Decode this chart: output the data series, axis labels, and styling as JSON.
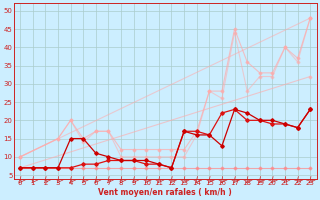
{
  "background_color": "#cceeff",
  "grid_color": "#aacccc",
  "xlim": [
    -0.5,
    23.5
  ],
  "ylim": [
    4,
    52
  ],
  "yticks": [
    5,
    10,
    15,
    20,
    25,
    30,
    35,
    40,
    45,
    50
  ],
  "xticks": [
    0,
    1,
    2,
    3,
    4,
    5,
    6,
    7,
    8,
    9,
    10,
    11,
    12,
    13,
    14,
    15,
    16,
    17,
    18,
    19,
    20,
    21,
    22,
    23
  ],
  "xlabel": "Vent moyen/en rafales ( km/h )",
  "series": [
    {
      "x": [
        0,
        1,
        2,
        3,
        4,
        5,
        6,
        7,
        8,
        9,
        10,
        11,
        12,
        13,
        14,
        15,
        16,
        17,
        18,
        19,
        20,
        21,
        22,
        23
      ],
      "y": [
        7,
        7,
        7,
        7,
        7,
        7,
        7,
        7,
        7,
        7,
        7,
        7,
        7,
        7,
        7,
        7,
        7,
        7,
        7,
        7,
        7,
        7,
        7,
        7
      ],
      "color": "#ff8888",
      "alpha": 0.7,
      "linewidth": 0.8,
      "marker": "D",
      "markersize": 1.5
    },
    {
      "x": [
        0,
        23
      ],
      "y": [
        7,
        32
      ],
      "color": "#ffaaaa",
      "alpha": 0.6,
      "linewidth": 0.8,
      "marker": "D",
      "markersize": 1.5
    },
    {
      "x": [
        0,
        23
      ],
      "y": [
        10,
        48
      ],
      "color": "#ffaaaa",
      "alpha": 0.55,
      "linewidth": 0.8,
      "marker": "D",
      "markersize": 1.5
    },
    {
      "x": [
        0,
        3,
        4,
        5,
        6,
        7,
        8,
        9,
        10,
        11,
        12,
        13,
        14,
        15,
        16,
        17,
        18,
        19,
        20,
        21,
        22,
        23
      ],
      "y": [
        10,
        15,
        20,
        15,
        17,
        17,
        12,
        12,
        12,
        12,
        12,
        12,
        17,
        28,
        28,
        45,
        36,
        33,
        33,
        40,
        37,
        48
      ],
      "color": "#ffaaaa",
      "alpha": 0.7,
      "linewidth": 0.8,
      "marker": "D",
      "markersize": 1.5
    },
    {
      "x": [
        0,
        3,
        4,
        5,
        6,
        7,
        8,
        9,
        10,
        11,
        12,
        13,
        14,
        15,
        16,
        17,
        18,
        19,
        20,
        21,
        22,
        23
      ],
      "y": [
        10,
        15,
        20,
        14,
        17,
        17,
        10,
        10,
        10,
        10,
        10,
        10,
        16,
        28,
        26,
        44,
        28,
        32,
        32,
        40,
        36,
        48
      ],
      "color": "#ffaaaa",
      "alpha": 0.55,
      "linewidth": 0.8,
      "marker": "D",
      "markersize": 1.5
    },
    {
      "x": [
        0,
        1,
        2,
        3,
        4,
        5,
        6,
        7,
        8,
        9,
        10,
        11,
        12,
        13,
        14,
        15,
        16,
        17,
        18,
        19,
        20,
        21,
        22,
        23
      ],
      "y": [
        7,
        7,
        7,
        7,
        7,
        8,
        8,
        9,
        9,
        9,
        8,
        8,
        7,
        17,
        17,
        16,
        22,
        23,
        20,
        20,
        19,
        19,
        18,
        23
      ],
      "color": "#dd1111",
      "alpha": 1.0,
      "linewidth": 0.9,
      "marker": "D",
      "markersize": 1.8
    },
    {
      "x": [
        0,
        1,
        2,
        3,
        4,
        5,
        6,
        7,
        8,
        9,
        10,
        11,
        12,
        13,
        14,
        15,
        16,
        17,
        18,
        19,
        20,
        21,
        22,
        23
      ],
      "y": [
        7,
        7,
        7,
        7,
        15,
        15,
        11,
        10,
        9,
        9,
        9,
        8,
        7,
        17,
        16,
        16,
        13,
        23,
        22,
        20,
        20,
        19,
        18,
        23
      ],
      "color": "#cc0000",
      "alpha": 1.0,
      "linewidth": 0.9,
      "marker": "D",
      "markersize": 1.8
    }
  ],
  "arrow_color": "#cc2222"
}
